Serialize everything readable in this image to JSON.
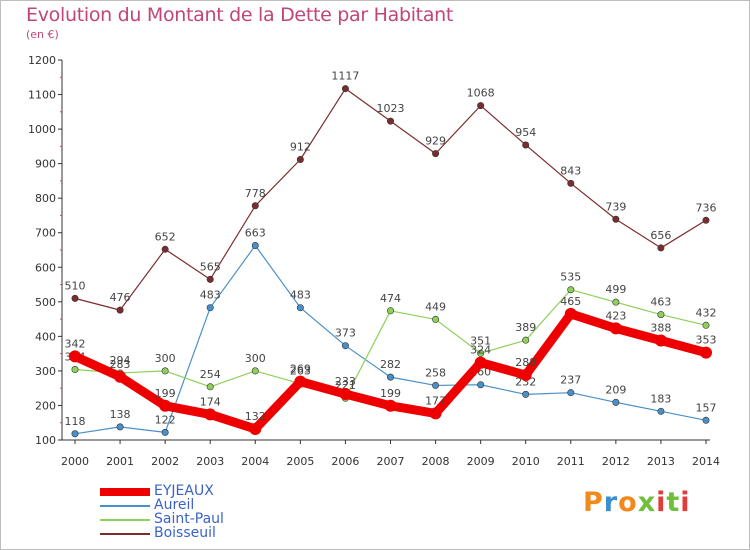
{
  "title": "Evolution du Montant de la Dette par Habitant",
  "unit": "(en €)",
  "brand": {
    "text": "Proxiti",
    "colors": [
      "#f08a1c",
      "#3b8fd1",
      "#f08a1c",
      "#6fbf3a",
      "#e23b3b",
      "#6fbf3a",
      "#e23b3b"
    ]
  },
  "chart_data": {
    "type": "line",
    "x": [
      "2000",
      "2001",
      "2002",
      "2003",
      "2004",
      "2005",
      "2006",
      "2007",
      "2008",
      "2009",
      "2010",
      "2011",
      "2012",
      "2013",
      "2014"
    ],
    "ylim": [
      100,
      1200
    ],
    "yticks": [
      100,
      200,
      300,
      400,
      500,
      600,
      700,
      800,
      900,
      1000,
      1100,
      1200
    ],
    "grid": false,
    "legend_position": "bottom-left",
    "series": [
      {
        "name": "Boisseuil",
        "color": "#7b2d2d",
        "values": [
          510,
          476,
          652,
          565,
          778,
          912,
          1117,
          1023,
          929,
          1068,
          954,
          843,
          739,
          656,
          736
        ]
      },
      {
        "name": "Aureil",
        "color": "#4a90c8",
        "values": [
          118,
          138,
          122,
          483,
          663,
          483,
          373,
          282,
          258,
          260,
          232,
          237,
          209,
          183,
          157
        ]
      },
      {
        "name": "Saint-Paul",
        "color": "#8ed05a",
        "values": [
          304,
          294,
          300,
          254,
          300,
          263,
          221,
          474,
          449,
          351,
          389,
          535,
          499,
          463,
          432
        ]
      },
      {
        "name": "EYJEAUX",
        "color": "#ee0000",
        "values": [
          342,
          283,
          199,
          174,
          132,
          269,
          233,
          199,
          177,
          324,
          288,
          465,
          423,
          388,
          353
        ]
      }
    ]
  }
}
